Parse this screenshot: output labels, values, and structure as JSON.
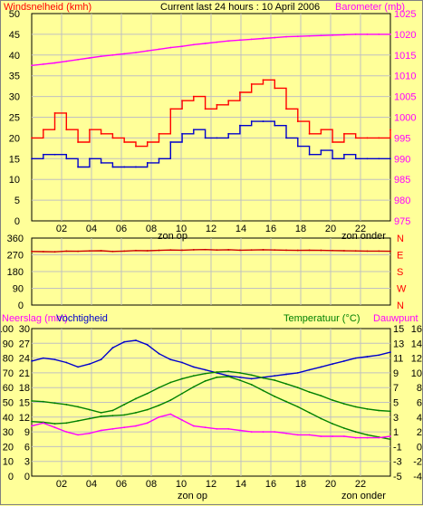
{
  "header": {
    "left_label": "Windsnelheid (kmh)",
    "center_label": "Current last 24 hours : 10 April 2006",
    "right_label": "Barometer (mb)"
  },
  "colors": {
    "background": "#ffff99",
    "plot_bg": "#ffff99",
    "grid": "#c0c0c0",
    "gust": "#ff0000",
    "average_wind": "#0000cc",
    "barometer": "#ff00ff",
    "direction": "#cc0000",
    "humidity": "#0000cc",
    "temperature": "#008000",
    "dewpoint": "#008000",
    "rain": "#ff00ff",
    "title_red": "#ff0000",
    "title_magenta": "#ff00ff",
    "title_green": "#008000",
    "title_blue": "#0000ff"
  },
  "x_axis": {
    "hour_ticks": [
      "02",
      "04",
      "06",
      "08",
      "10",
      "12",
      "14",
      "16",
      "18",
      "20",
      "22"
    ],
    "sunrise_label": "zon op",
    "sunset_label": "zon onder"
  },
  "chart_data": [
    {
      "type": "line",
      "name": "wind-barometer",
      "x_range_hours": [
        0,
        24
      ],
      "y_left": {
        "ticks": [
          "0",
          "5",
          "10",
          "15",
          "20",
          "25",
          "30",
          "35",
          "40",
          "45",
          "50"
        ],
        "range": [
          0,
          50
        ],
        "label": "Windsnelheid (kmh)"
      },
      "y_right": {
        "ticks": [
          "975",
          "980",
          "985",
          "990",
          "995",
          "1000",
          "1005",
          "1010",
          "1015",
          "1020",
          "1025"
        ],
        "range": [
          975,
          1025
        ],
        "label": "Barometer (mb)"
      },
      "series": [
        {
          "role": "gust",
          "axis": "left",
          "values": [
            20,
            22,
            26,
            22,
            19,
            22,
            21,
            20,
            19,
            18,
            19,
            21,
            27,
            29,
            30,
            27,
            28,
            29,
            31,
            33,
            34,
            32,
            27,
            24,
            21,
            22,
            19,
            21,
            20,
            20,
            20,
            22
          ]
        },
        {
          "role": "average",
          "axis": "left",
          "values": [
            15,
            16,
            16,
            15,
            13,
            15,
            14,
            13,
            13,
            13,
            14,
            15,
            19,
            21,
            22,
            20,
            20,
            21,
            23,
            24,
            24,
            23,
            20,
            18,
            16,
            17,
            15,
            16,
            15,
            15,
            15,
            15
          ]
        },
        {
          "role": "barometer",
          "axis": "right",
          "values": [
            1012.5,
            1012.8,
            1013.1,
            1013.5,
            1013.9,
            1014.3,
            1014.7,
            1015.0,
            1015.3,
            1015.6,
            1016.0,
            1016.4,
            1016.8,
            1017.1,
            1017.5,
            1017.8,
            1018.1,
            1018.4,
            1018.6,
            1018.8,
            1019.0,
            1019.2,
            1019.4,
            1019.5,
            1019.6,
            1019.7,
            1019.8,
            1019.9,
            1020.0,
            1020.0,
            1020.0,
            1020.0
          ]
        }
      ]
    },
    {
      "type": "line",
      "name": "wind-direction",
      "x_range_hours": [
        0,
        24
      ],
      "y_left": {
        "ticks": [
          "0",
          "90",
          "180",
          "270",
          "360"
        ],
        "range": [
          0,
          360
        ]
      },
      "y_right": {
        "ticks": [
          "N",
          "W",
          "S",
          "E",
          "N"
        ],
        "range": [
          0,
          360
        ]
      },
      "series": [
        {
          "role": "direction",
          "values": [
            288,
            287,
            286,
            290,
            289,
            291,
            292,
            288,
            290,
            293,
            292,
            294,
            296,
            295,
            297,
            298,
            296,
            297,
            295,
            296,
            297,
            296,
            295,
            294,
            295,
            294,
            293,
            292,
            291,
            290,
            290,
            289
          ]
        }
      ]
    },
    {
      "type": "line",
      "name": "rain-humidity-temperature",
      "x_range_hours": [
        0,
        24
      ],
      "y_left_outer": {
        "label": "Neerslag (mm)",
        "ticks": [
          "0",
          "10",
          "20",
          "30",
          "40",
          "50",
          "60",
          "70",
          "80",
          "90",
          "100"
        ],
        "range": [
          0,
          100
        ]
      },
      "y_left_inner": {
        "label": "Vochtigheid",
        "ticks": [
          "0",
          "3",
          "6",
          "9",
          "12",
          "15",
          "18",
          "21",
          "24",
          "27",
          "30"
        ],
        "range": [
          0,
          30
        ]
      },
      "y_right_inner": {
        "label": "Temperatuur (°C)",
        "ticks": [
          "-5",
          "-3",
          "-1",
          "1",
          "3",
          "5",
          "7",
          "9",
          "11",
          "13",
          "15"
        ],
        "range": [
          -5,
          15
        ]
      },
      "y_right_outer": {
        "label": "Dauwpunt",
        "ticks": [
          "-4",
          "-2",
          "0",
          "2",
          "4",
          "6",
          "8",
          "10",
          "12",
          "14",
          "16"
        ],
        "range": [
          -4,
          16
        ]
      },
      "labels": {
        "rain": "Neerslag (mm)",
        "humidity": "Vochtigheid",
        "temperature": "Temperatuur (°C)",
        "dewpoint": "Dauwpunt"
      },
      "series": [
        {
          "role": "humidity",
          "axis": "left_outer",
          "values": [
            78,
            80,
            79,
            77,
            74,
            76,
            79,
            87,
            91,
            92,
            89,
            83,
            79,
            77,
            74,
            72,
            70,
            68,
            67,
            66,
            67,
            68,
            69,
            70,
            72,
            74,
            76,
            78,
            80,
            81,
            82,
            84
          ]
        },
        {
          "role": "temperature",
          "axis": "right_inner",
          "values": [
            5.2,
            5.1,
            4.9,
            4.7,
            4.4,
            4.0,
            3.6,
            3.9,
            4.7,
            5.5,
            6.2,
            7.0,
            7.7,
            8.2,
            8.6,
            8.9,
            9.1,
            9.2,
            9.0,
            8.7,
            8.3,
            8.0,
            7.5,
            7.0,
            6.4,
            5.9,
            5.3,
            4.8,
            4.4,
            4.1,
            3.9,
            3.8
          ]
        },
        {
          "role": "dewpoint",
          "axis": "right_outer",
          "values": [
            3.4,
            3.3,
            3.1,
            3.2,
            3.5,
            3.8,
            4.1,
            4.2,
            4.3,
            4.6,
            5.0,
            5.6,
            6.3,
            7.2,
            8.1,
            8.9,
            9.4,
            9.5,
            9.0,
            8.4,
            7.6,
            6.8,
            6.1,
            5.4,
            4.6,
            3.8,
            3.1,
            2.5,
            2.0,
            1.6,
            1.3,
            1.0
          ]
        },
        {
          "role": "rain",
          "axis": "left_outer",
          "values": [
            34,
            36,
            33,
            30,
            28,
            29,
            31,
            32,
            33,
            34,
            36,
            40,
            42,
            38,
            34,
            33,
            32,
            32,
            31,
            30,
            30,
            30,
            29,
            28,
            28,
            27,
            27,
            27,
            26,
            26,
            26,
            27
          ]
        }
      ]
    }
  ]
}
